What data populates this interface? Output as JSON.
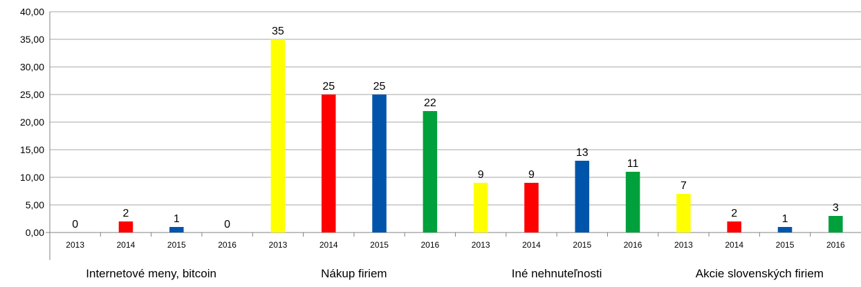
{
  "chart_data": {
    "type": "bar",
    "ylim": [
      0,
      40
    ],
    "y_ticks": [
      "0,00",
      "5,00",
      "10,00",
      "15,00",
      "20,00",
      "25,00",
      "30,00",
      "35,00",
      "40,00"
    ],
    "groups": [
      {
        "label": "Internetové meny, bitcoin",
        "years": [
          "2013",
          "2014",
          "2015",
          "2016"
        ],
        "values": [
          0,
          2,
          1,
          0
        ],
        "labels": [
          "0",
          "2",
          "1",
          "0"
        ]
      },
      {
        "label": "Nákup firiem",
        "years": [
          "2013",
          "2014",
          "2015",
          "2016"
        ],
        "values": [
          35,
          25,
          25,
          22
        ],
        "labels": [
          "35",
          "25",
          "25",
          "22"
        ]
      },
      {
        "label": "Iné nehnuteľnosti",
        "years": [
          "2013",
          "2014",
          "2015",
          "2016"
        ],
        "values": [
          9,
          9,
          13,
          11
        ],
        "labels": [
          "9",
          "9",
          "13",
          "11"
        ]
      },
      {
        "label": "Akcie slovenských firiem",
        "years": [
          "2013",
          "2014",
          "2015",
          "2016"
        ],
        "values": [
          7,
          2,
          1,
          3
        ],
        "labels": [
          "7",
          "2",
          "1",
          "3"
        ]
      }
    ],
    "year_colors": {
      "2013": "#ffff00",
      "2014": "#ff0000",
      "2015": "#0055aa",
      "2016": "#00a03c"
    },
    "grid": true,
    "legend": "none"
  }
}
